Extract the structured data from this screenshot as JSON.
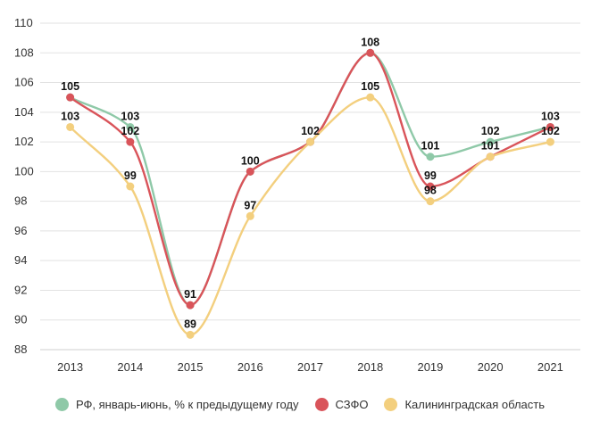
{
  "chart_data": {
    "type": "line",
    "title": "",
    "xlabel": "",
    "ylabel": "",
    "categories": [
      "2013",
      "2014",
      "2015",
      "2016",
      "2017",
      "2018",
      "2019",
      "2020",
      "2021"
    ],
    "ylim": [
      88,
      110
    ],
    "yticks": [
      88,
      90,
      92,
      94,
      96,
      98,
      100,
      102,
      104,
      106,
      108,
      110
    ],
    "grid": true,
    "legend_position": "bottom",
    "series": [
      {
        "name": "РФ, январь-июнь, % к предыдущему году",
        "color": "#8fc9a8",
        "values": [
          105,
          103,
          91,
          100,
          102,
          108,
          101,
          102,
          103
        ],
        "labels": [
          null,
          "103",
          null,
          null,
          null,
          null,
          "101",
          "102",
          "103"
        ]
      },
      {
        "name": "СЗФО",
        "color": "#d9545a",
        "values": [
          105,
          102,
          91,
          100,
          102,
          108,
          99,
          101,
          103
        ],
        "labels": [
          "105",
          "102",
          "91",
          "100",
          null,
          "108",
          "99",
          null,
          null
        ]
      },
      {
        "name": "Калининградская область",
        "color": "#f3cf7e",
        "values": [
          103,
          99,
          89,
          97,
          102,
          105,
          98,
          101,
          102
        ],
        "labels": [
          "103",
          "99",
          "89",
          "97",
          "102",
          "105",
          "98",
          "101",
          "102"
        ]
      }
    ]
  }
}
